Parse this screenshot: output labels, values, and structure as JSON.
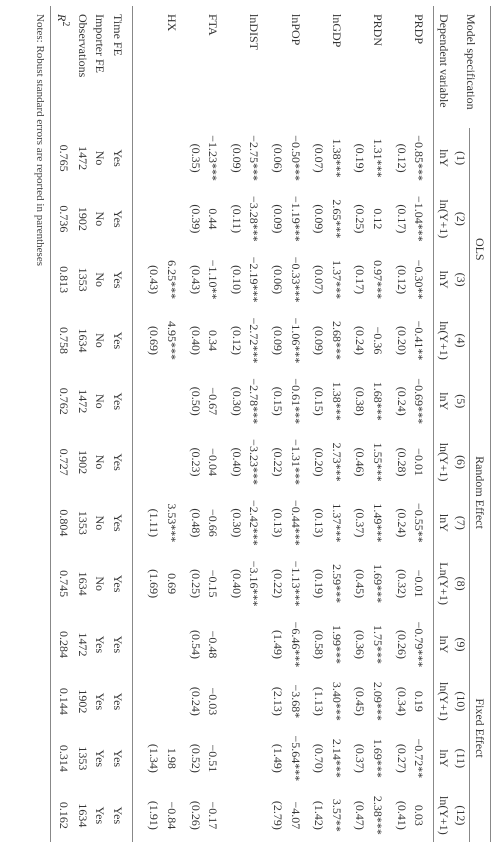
{
  "header": {
    "model_spec": "Model\nspecification",
    "groups": [
      "OLS",
      "Random Effect",
      "Fixed Effect"
    ],
    "col_nums": [
      "(1)",
      "(2)",
      "(3)",
      "(4)",
      "(5)",
      "(6)",
      "(7)",
      "(8)",
      "(9)",
      "(10)",
      "(11)",
      "(12)"
    ],
    "dep_var_label": "Dependent variable",
    "dep_vars": [
      "lnY",
      "ln(Y+1)",
      "lnY",
      "ln(Y+1)",
      "lnY",
      "ln(Y+1)",
      "lnY",
      "Ln(Y+1)",
      "lnY",
      "ln(Y+1)",
      "lnY",
      "ln(Y+1)"
    ]
  },
  "rows": [
    {
      "label": "PRDP",
      "est": [
        "−0.85***",
        "−1.04***",
        "−0.30**",
        "−0.41**",
        "−0.69***",
        "−0.01",
        "−0.55**",
        "−0.01",
        "−0.79***",
        "0.19",
        "−0.72**",
        "0.03"
      ],
      "se": [
        "(0.12)",
        "(0.17)",
        "(0.12)",
        "(0.20)",
        "(0.24)",
        "(0.28)",
        "(0.24)",
        "(0.32)",
        "(0.26)",
        "(0.34)",
        "(0.27)",
        "(0.41)"
      ]
    },
    {
      "label": "PRDN",
      "est": [
        "1.31***",
        "0.12",
        "0.97***",
        "−0.36",
        "1.68***",
        "1.55***",
        "1.49***",
        "1.69***",
        "1.75***",
        "2.09***",
        "1.69***",
        "2.38***"
      ],
      "se": [
        "(0.19)",
        "(0.25)",
        "(0.17)",
        "(0.24)",
        "(0.38)",
        "(0.46)",
        "(0.37)",
        "(0.45)",
        "(0.36)",
        "(0.45)",
        "(0.37)",
        "(0.47)"
      ]
    },
    {
      "label": "lnGDP",
      "est": [
        "1.38***",
        "2.65***",
        "1.37***",
        "2.68***",
        "1.38***",
        "2.73***",
        "1.37***",
        "2.59***",
        "1.99***",
        "3.40***",
        "2.14***",
        "3.57**"
      ],
      "se": [
        "(0.07)",
        "(0.09)",
        "(0.07)",
        "(0.09)",
        "(0.15)",
        "(0.20)",
        "(0.13)",
        "(0.19)",
        "(0.58)",
        "(1.13)",
        "(0.70)",
        "(1.42)"
      ]
    },
    {
      "label": "lnPOP",
      "est": [
        "−0.50***",
        "−1.19***",
        "−0.33***",
        "−1.06***",
        "−0.61***",
        "−1.31***",
        "−0.44***",
        "−1.13***",
        "−6.46***",
        "−3.68*",
        "−5.64***",
        "−4.07"
      ],
      "se": [
        "(0.06)",
        "(0.09)",
        "(0.06)",
        "(0.09)",
        "(0.15)",
        "(0.22)",
        "(0.13)",
        "(0.22)",
        "(1.49)",
        "(2.13)",
        "(1.49)",
        "(2.79)"
      ]
    },
    {
      "label": "lnDIST",
      "est": [
        "−2.75***",
        "−3.28***",
        "−2.19***",
        "−2.72***",
        "−2.78***",
        "−3.23***",
        "−2.42***",
        "−3.16***",
        "",
        "",
        "",
        ""
      ],
      "se": [
        "(0.09)",
        "(0.11)",
        "(0.10)",
        "(0.12)",
        "(0.30)",
        "(0.40)",
        "(0.30)",
        "(0.40)",
        "",
        "",
        "",
        ""
      ]
    },
    {
      "label": "FTA",
      "est": [
        "−1.23***",
        "0.44",
        "−1.10**",
        "0.34",
        "−0.67",
        "−0.04",
        "−0.66",
        "−0.15",
        "−0.48",
        "−0.03",
        "−0.51",
        "−0.17"
      ],
      "se": [
        "(0.35)",
        "(0.39)",
        "(0.43)",
        "(0.40)",
        "(0.50)",
        "(0.23)",
        "(0.48)",
        "(0.25)",
        "(0.54)",
        "(0.24)",
        "(0.52)",
        "(0.26)"
      ]
    },
    {
      "label": "HX",
      "est": [
        "",
        "",
        "6.25***",
        "4.95***",
        "",
        "",
        "3.53***",
        "0.69",
        "",
        "",
        "1.98",
        "−0.84"
      ],
      "se": [
        "",
        "",
        "(0.43)",
        "(0.69)",
        "",
        "",
        "(1.11)",
        "(1.69)",
        "",
        "",
        "(1.34)",
        "(1.91)"
      ]
    }
  ],
  "footer_rows": [
    {
      "label": "Time FE",
      "vals": [
        "Yes",
        "Yes",
        "Yes",
        "Yes",
        "Yes",
        "Yes",
        "Yes",
        "Yes",
        "Yes",
        "Yes",
        "Yes",
        "Yes"
      ]
    },
    {
      "label": "Importer FE",
      "vals": [
        "No",
        "No",
        "No",
        "No",
        "No",
        "No",
        "No",
        "No",
        "Yes",
        "Yes",
        "Yes",
        "Yes"
      ]
    },
    {
      "label": "Observations",
      "vals": [
        "1472",
        "1902",
        "1353",
        "1634",
        "1472",
        "1902",
        "1353",
        "1634",
        "1472",
        "1902",
        "1353",
        "1634"
      ]
    },
    {
      "label": "R²",
      "vals": [
        "0.765",
        "0.736",
        "0.813",
        "0.758",
        "0.762",
        "0.727",
        "0.804",
        "0.745",
        "0.284",
        "0.144",
        "0.314",
        "0.162"
      ]
    }
  ],
  "notes": "Notes: Robust standard errors are reported in parentheses"
}
